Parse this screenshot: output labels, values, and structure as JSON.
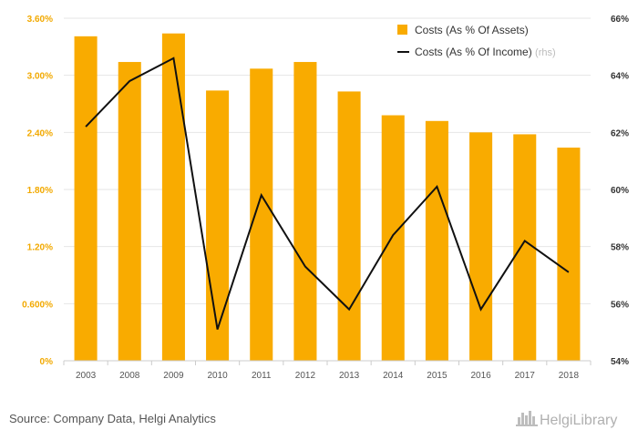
{
  "chart_data": {
    "type": "bar",
    "categories": [
      "2003",
      "2008",
      "2009",
      "2010",
      "2011",
      "2012",
      "2013",
      "2014",
      "2015",
      "2016",
      "2017",
      "2018"
    ],
    "series": [
      {
        "name": "Costs (As % Of Assets)",
        "kind": "bar",
        "axis": "left",
        "color": "#f9ab00",
        "values": [
          3.41,
          3.14,
          3.44,
          2.84,
          3.07,
          3.14,
          2.83,
          2.58,
          2.52,
          2.4,
          2.38,
          2.24
        ]
      },
      {
        "name": "Costs (As % Of Income)",
        "name_suffix": "(rhs)",
        "kind": "line",
        "axis": "right",
        "color": "#111111",
        "values": [
          62.2,
          63.8,
          64.6,
          55.1,
          59.8,
          57.3,
          55.8,
          58.4,
          60.1,
          55.8,
          58.2,
          57.1
        ]
      }
    ],
    "left_axis": {
      "ylim": [
        0,
        3.6
      ],
      "ticks": [
        0,
        0.6,
        1.2,
        1.8,
        2.4,
        3.0,
        3.6
      ],
      "tick_labels": [
        "0%",
        "0.600%",
        "1.20%",
        "1.80%",
        "2.40%",
        "3.00%",
        "3.60%"
      ],
      "color": "#f2a900"
    },
    "right_axis": {
      "ylim": [
        54,
        66
      ],
      "ticks": [
        54,
        56,
        58,
        60,
        62,
        64,
        66
      ],
      "tick_labels": [
        "54%",
        "56%",
        "58%",
        "60%",
        "62%",
        "64%",
        "66%"
      ]
    },
    "grid": "horizontal",
    "legend_position": "top-right",
    "title": "",
    "xlabel": "",
    "ylabel": ""
  },
  "footer": {
    "source": "Source: Company Data, Helgi Analytics",
    "logo_text": "HelgiLibrary"
  }
}
